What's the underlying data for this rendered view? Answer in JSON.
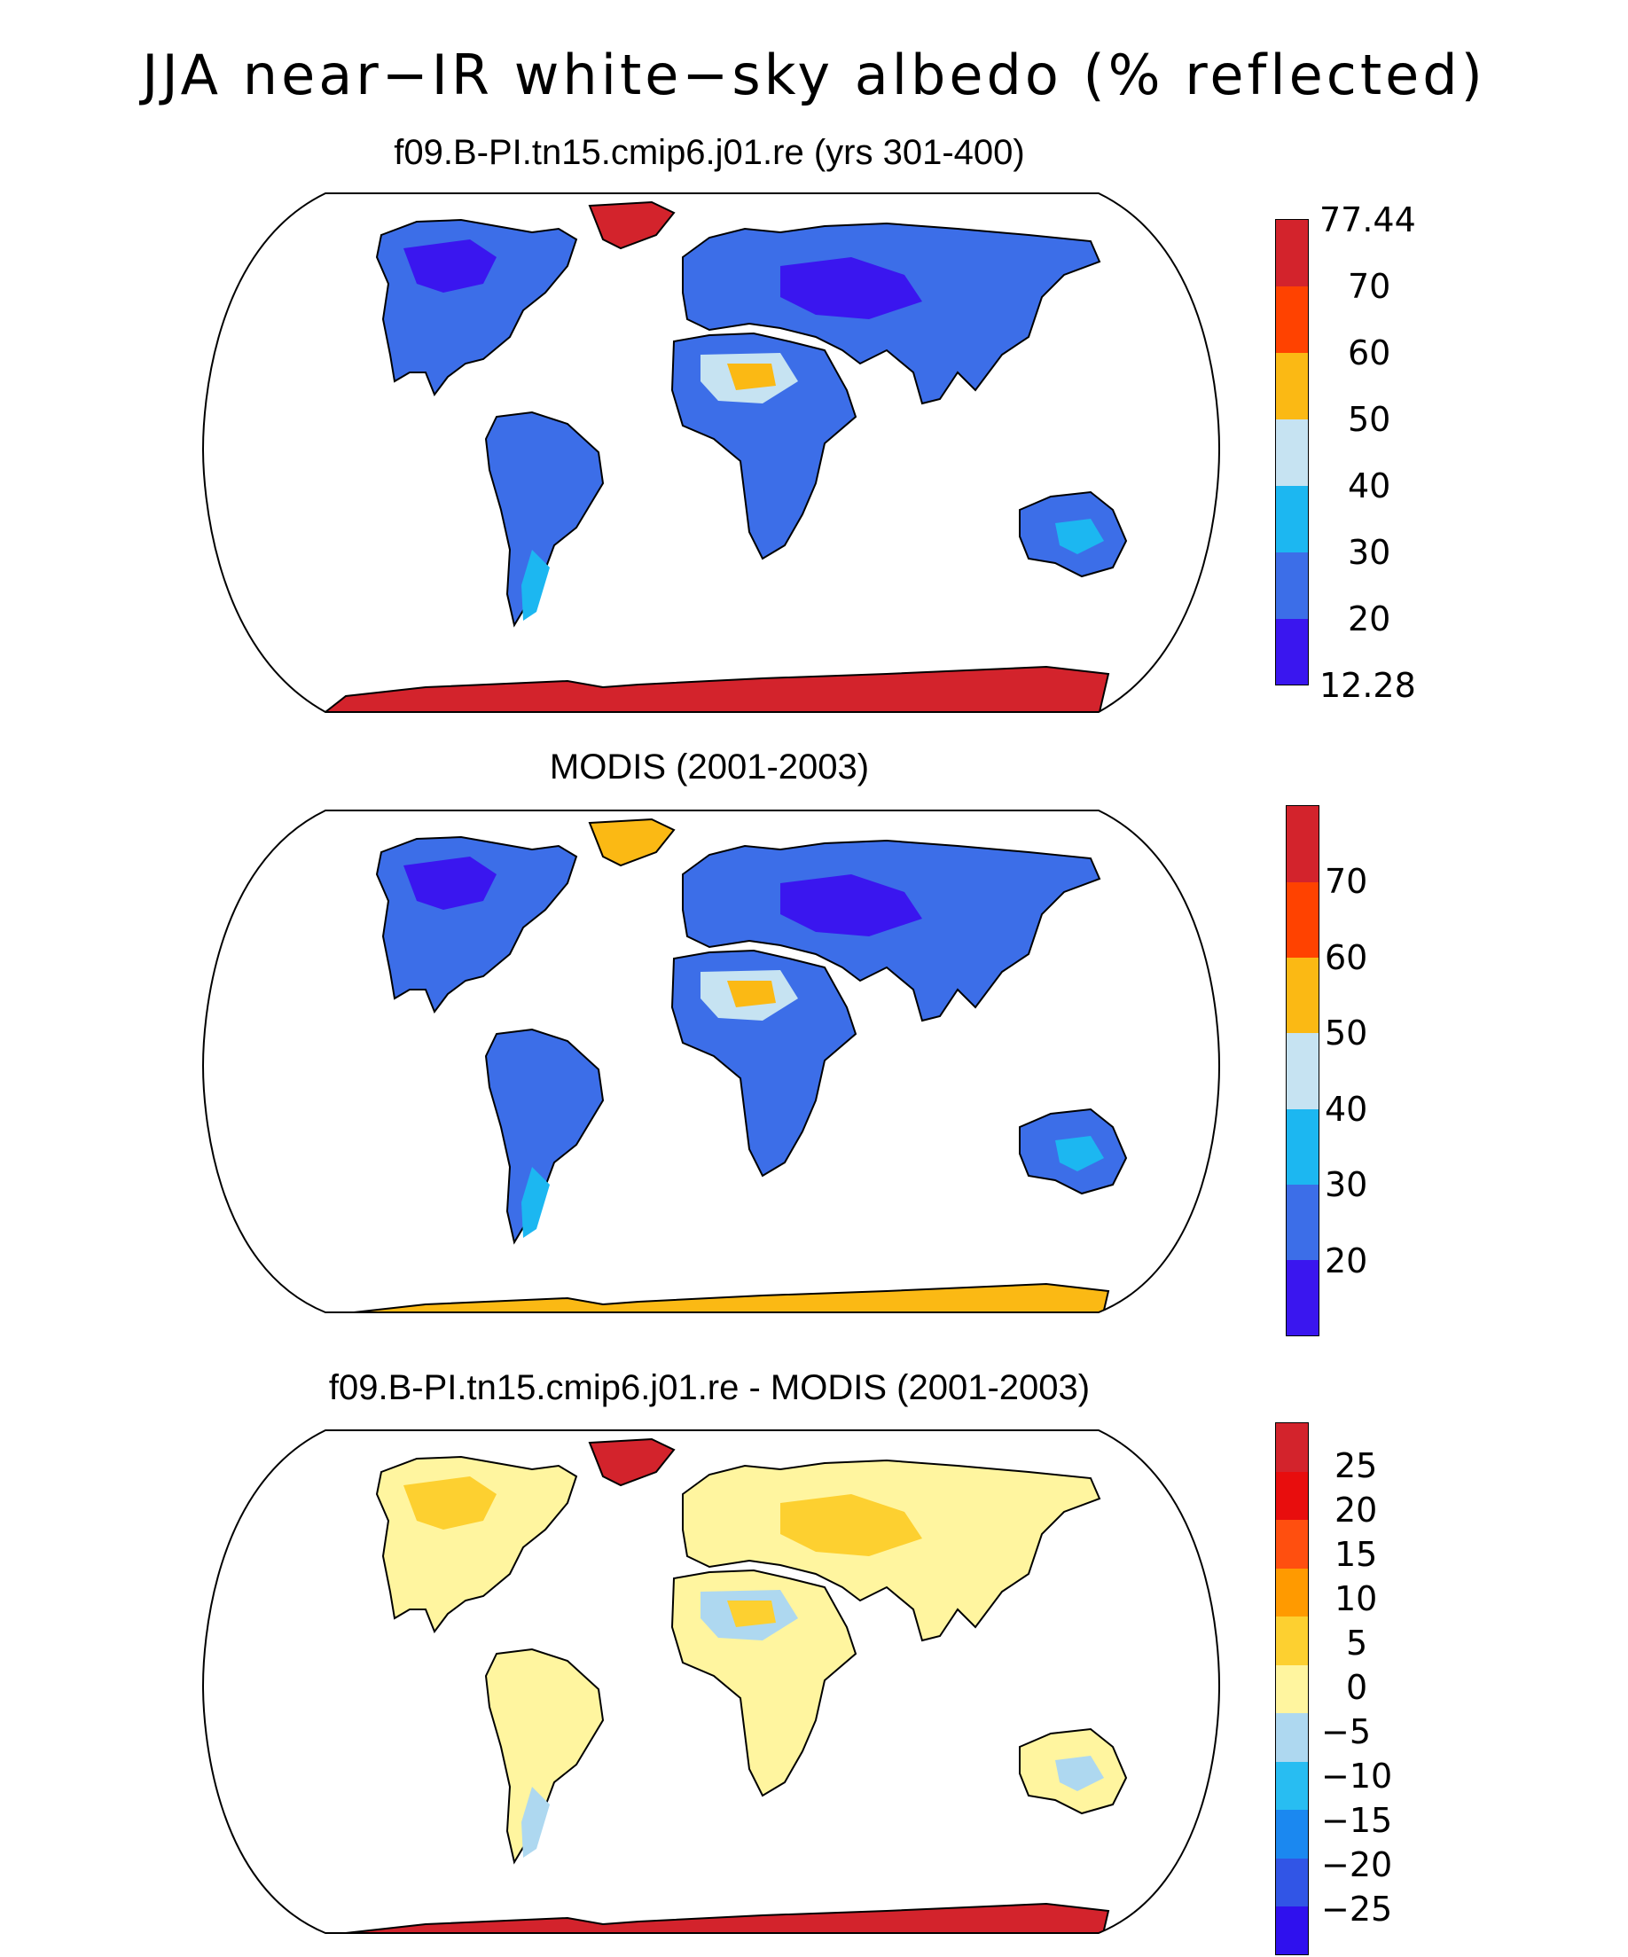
{
  "title": "JJA near−IR white−sky albedo (% reflected)",
  "panels": [
    {
      "title": "f09.B-PI.tn15.cmip6.j01.re (yrs 301-400)",
      "colorbar": {
        "colors": [
          "#3a16ef",
          "#3c6ee8",
          "#1cb7f1",
          "#c6e3f2",
          "#fbb914",
          "#ff4200",
          "#d3232c"
        ],
        "labels": [
          "77.44",
          "70",
          "60",
          "50",
          "40",
          "30",
          "20",
          "12.28"
        ]
      },
      "colors": {
        "land_main": "#3c6ee8",
        "land_dark": "#3a16ef",
        "light": "#1cb7f1",
        "pale": "#c6e3f2",
        "warm": "#fbb914",
        "ice": "#d3232c"
      }
    },
    {
      "title": "MODIS (2001-2003)",
      "colorbar": {
        "colors": [
          "#3a16ef",
          "#3c6ee8",
          "#1cb7f1",
          "#c6e3f2",
          "#fbb914",
          "#ff4200",
          "#d3232c"
        ],
        "labels": [
          "70",
          "60",
          "50",
          "40",
          "30",
          "20"
        ]
      },
      "colors": {
        "land_main": "#3c6ee8",
        "land_dark": "#3a16ef",
        "light": "#1cb7f1",
        "pale": "#c6e3f2",
        "warm": "#fbb914",
        "ice": "#fbb914"
      }
    },
    {
      "title": "f09.B-PI.tn15.cmip6.j01.re - MODIS (2001-2003)",
      "colorbar": {
        "colors": [
          "#2f10ee",
          "#3155e6",
          "#1b88f0",
          "#28bdf2",
          "#aed8f0",
          "#fff59f",
          "#fdd030",
          "#ff9a00",
          "#ff4f0f",
          "#e80d0d",
          "#d3232c"
        ],
        "labels": [
          "25",
          "20",
          "15",
          "10",
          "5",
          "0",
          "−5",
          "−10",
          "−15",
          "−20",
          "−25"
        ]
      },
      "colors": {
        "land_main": "#fff59f",
        "land_dark": "#fdd030",
        "light": "#aed8f0",
        "pale": "#aed8f0",
        "warm": "#fdd030",
        "ice": "#d3232c"
      }
    }
  ]
}
